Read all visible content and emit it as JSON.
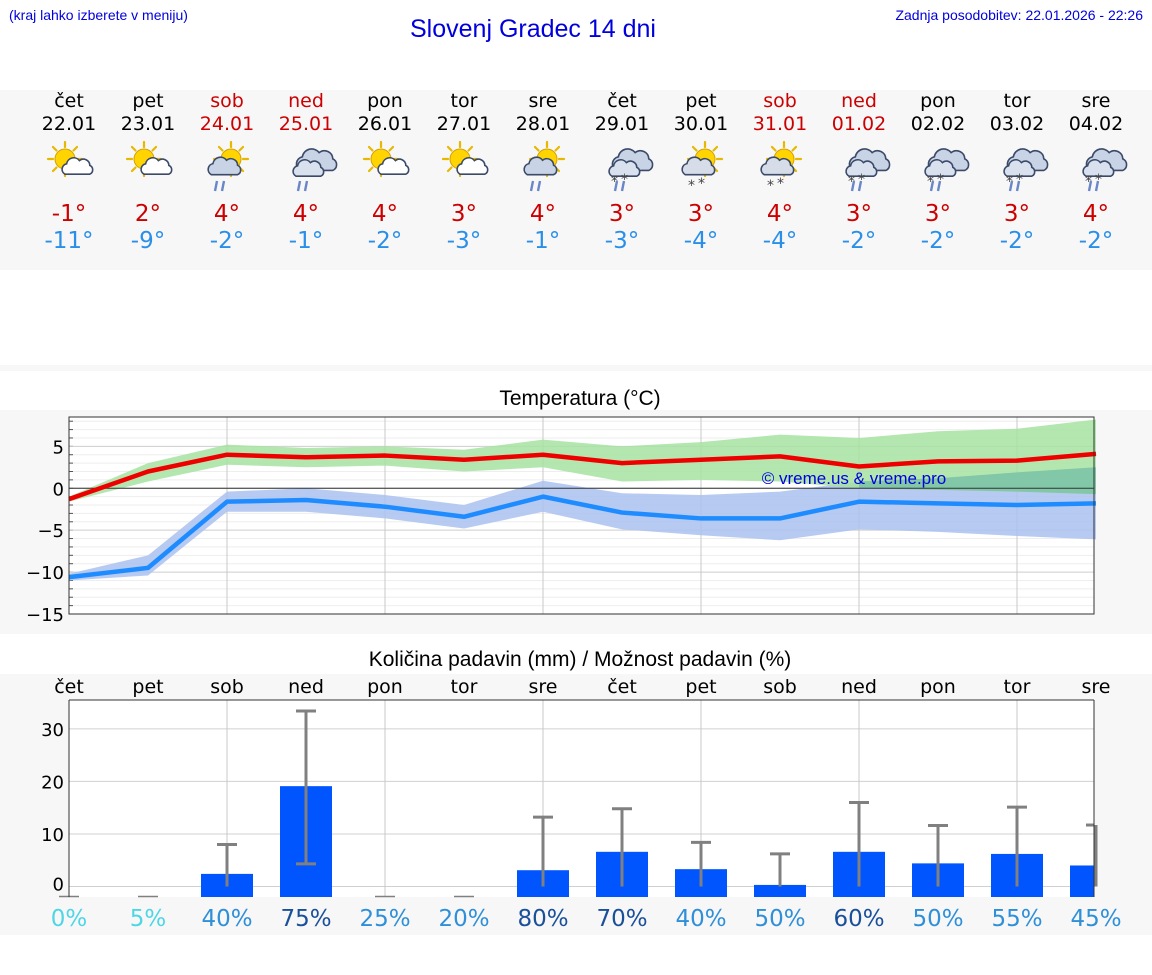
{
  "header": {
    "left_note": "(kraj lahko izberete v meniju)",
    "title": "Slovenj Gradec 14 dni",
    "updated": "Zadnja posodobitev: 22.01.2026 - 22:26"
  },
  "colors": {
    "weekday": "#000000",
    "weekend": "#cc0000",
    "tmax": "#cc0000",
    "tmin": "#2a8fe8",
    "max_line": "#ee0000",
    "max_band": "#a6e3a1",
    "min_line": "#1e8cff",
    "min_band": "#a9c1f0",
    "overlap": "#7dc4a6",
    "bar": "#0055ff",
    "error": "#808080",
    "copyright": "#0000dd"
  },
  "forecast": {
    "days": [
      {
        "dow": "čet",
        "date": "22.01",
        "weekend": false,
        "icon": "sun-cloud-icon",
        "tmax": "-1°",
        "tmin": "-11°"
      },
      {
        "dow": "pet",
        "date": "23.01",
        "weekend": false,
        "icon": "sun-cloud-icon",
        "tmax": "2°",
        "tmin": "-9°"
      },
      {
        "dow": "sob",
        "date": "24.01",
        "weekend": true,
        "icon": "sun-rain-icon",
        "tmax": "4°",
        "tmin": "-2°"
      },
      {
        "dow": "ned",
        "date": "25.01",
        "weekend": true,
        "icon": "cloud-rain-icon",
        "tmax": "4°",
        "tmin": "-1°"
      },
      {
        "dow": "pon",
        "date": "26.01",
        "weekend": false,
        "icon": "sun-cloud-icon",
        "tmax": "4°",
        "tmin": "-2°"
      },
      {
        "dow": "tor",
        "date": "27.01",
        "weekend": false,
        "icon": "sun-cloud-icon",
        "tmax": "3°",
        "tmin": "-3°"
      },
      {
        "dow": "sre",
        "date": "28.01",
        "weekend": false,
        "icon": "sun-rain-icon",
        "tmax": "4°",
        "tmin": "-1°"
      },
      {
        "dow": "čet",
        "date": "29.01",
        "weekend": false,
        "icon": "cloud-sleet-icon",
        "tmax": "3°",
        "tmin": "-3°"
      },
      {
        "dow": "pet",
        "date": "30.01",
        "weekend": false,
        "icon": "sun-snow-icon",
        "tmax": "3°",
        "tmin": "-4°"
      },
      {
        "dow": "sob",
        "date": "31.01",
        "weekend": true,
        "icon": "sun-snow-icon",
        "tmax": "4°",
        "tmin": "-4°"
      },
      {
        "dow": "ned",
        "date": "01.02",
        "weekend": true,
        "icon": "cloud-sleet-icon",
        "tmax": "3°",
        "tmin": "-2°"
      },
      {
        "dow": "pon",
        "date": "02.02",
        "weekend": false,
        "icon": "cloud-sleet-icon",
        "tmax": "3°",
        "tmin": "-2°"
      },
      {
        "dow": "tor",
        "date": "03.02",
        "weekend": false,
        "icon": "cloud-sleet-icon",
        "tmax": "3°",
        "tmin": "-2°"
      },
      {
        "dow": "sre",
        "date": "04.02",
        "weekend": false,
        "icon": "cloud-sleet-icon",
        "tmax": "4°",
        "tmin": "-2°"
      }
    ]
  },
  "chart_data": [
    {
      "type": "line",
      "title": "Temperatura (°C)",
      "copyright": "© vreme.us & vreme.pro",
      "x": [
        0,
        1,
        2,
        3,
        4,
        5,
        6,
        7,
        8,
        9,
        10,
        11,
        12,
        13
      ],
      "ylim": [
        -15,
        8.5
      ],
      "yticks": [
        5,
        0,
        -5,
        -10,
        -15
      ],
      "ytick_labels": [
        "5",
        "0",
        "−5",
        "−10",
        "−15"
      ],
      "grid": true,
      "series": [
        {
          "name": "max",
          "values": [
            -1.3,
            2.0,
            4.0,
            3.7,
            3.9,
            3.4,
            4.0,
            3.0,
            3.4,
            3.8,
            2.6,
            3.2,
            3.3,
            4.1
          ],
          "band_low": [
            -1.6,
            0.8,
            2.8,
            2.5,
            2.7,
            2.0,
            2.5,
            0.8,
            1.0,
            0.8,
            0.0,
            -0.2,
            -0.4,
            -0.7
          ],
          "band_high": [
            -1.0,
            3.0,
            5.2,
            4.8,
            5.0,
            4.6,
            5.8,
            5.0,
            5.5,
            6.4,
            6.0,
            6.8,
            7.1,
            8.2
          ]
        },
        {
          "name": "min",
          "values": [
            -10.6,
            -9.5,
            -1.6,
            -1.4,
            -2.2,
            -3.4,
            -1.0,
            -2.9,
            -3.6,
            -3.6,
            -1.6,
            -1.8,
            -2.0,
            -1.8
          ],
          "band_low": [
            -11.0,
            -10.4,
            -2.8,
            -2.8,
            -3.6,
            -4.8,
            -2.8,
            -4.9,
            -5.6,
            -6.2,
            -4.9,
            -5.2,
            -5.7,
            -6.1
          ],
          "band_high": [
            -10.2,
            -8.0,
            -0.4,
            0.0,
            -0.8,
            -2.0,
            0.9,
            -0.6,
            -0.8,
            -0.4,
            0.8,
            1.2,
            1.9,
            2.5
          ]
        }
      ]
    },
    {
      "type": "bar",
      "title": "Količina padavin (mm) / Možnost padavin (%)",
      "categories": [
        "čet",
        "pet",
        "sob",
        "ned",
        "pon",
        "tor",
        "sre",
        "čet",
        "pet",
        "sob",
        "ned",
        "pon",
        "tor",
        "sre"
      ],
      "ylim": [
        -2,
        35.5
      ],
      "yticks": [
        30,
        20,
        10,
        0
      ],
      "values": [
        0,
        0,
        2.4,
        19.1,
        0,
        0,
        3.1,
        6.6,
        3.3,
        0.3,
        6.6,
        4.4,
        6.2,
        4.0
      ],
      "err_low": [
        0,
        0,
        0,
        4.3,
        0,
        0,
        0,
        0,
        0,
        0,
        0,
        0,
        0,
        0
      ],
      "err_high": [
        0,
        0,
        8.0,
        33.4,
        0,
        0,
        13.2,
        14.8,
        8.4,
        6.2,
        16.0,
        11.6,
        15.1,
        11.7
      ],
      "probability": [
        "0%",
        "5%",
        "40%",
        "75%",
        "25%",
        "20%",
        "80%",
        "70%",
        "40%",
        "50%",
        "60%",
        "50%",
        "55%",
        "45%"
      ],
      "probability_colors": [
        "#4fd6e6",
        "#4fd6e6",
        "#2f8fd8",
        "#1a4f9a",
        "#2f8fd8",
        "#2f8fd8",
        "#1a4f9a",
        "#1a4f9a",
        "#2f8fd8",
        "#2f8fd8",
        "#1a4f9a",
        "#2f8fd8",
        "#2f8fd8",
        "#2f8fd8"
      ],
      "grid": true
    }
  ]
}
